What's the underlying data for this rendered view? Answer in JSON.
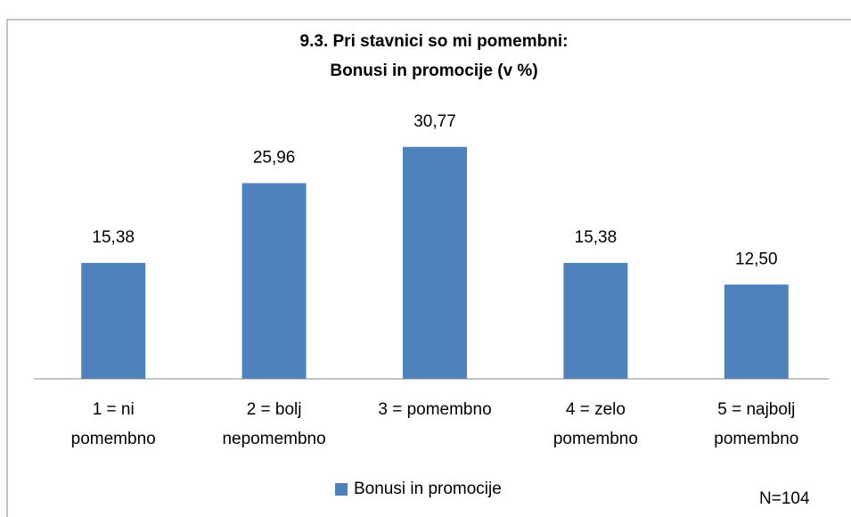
{
  "chart_data": {
    "type": "bar",
    "title": [
      "9.3. Pri stavnici so mi pomembni:",
      "Bonusi in promocije (v %)"
    ],
    "categories": [
      [
        "1 = ni",
        "pomembno"
      ],
      [
        "2 = bolj",
        "nepomembno"
      ],
      [
        "3 = pomembno"
      ],
      [
        "4 = zelo",
        "pomembno"
      ],
      [
        "5 = najbolj",
        "pomembno"
      ]
    ],
    "series": [
      {
        "name": "Bonusi in promocije",
        "color": "#4f81bd",
        "values": [
          15.38,
          25.96,
          30.77,
          15.38,
          12.5
        ],
        "value_labels": [
          "15,38",
          "25,96",
          "30,77",
          "15,38",
          "12,50"
        ]
      }
    ],
    "ylim": [
      0,
      35
    ],
    "legend": "bottom",
    "annotation": "N=104"
  }
}
